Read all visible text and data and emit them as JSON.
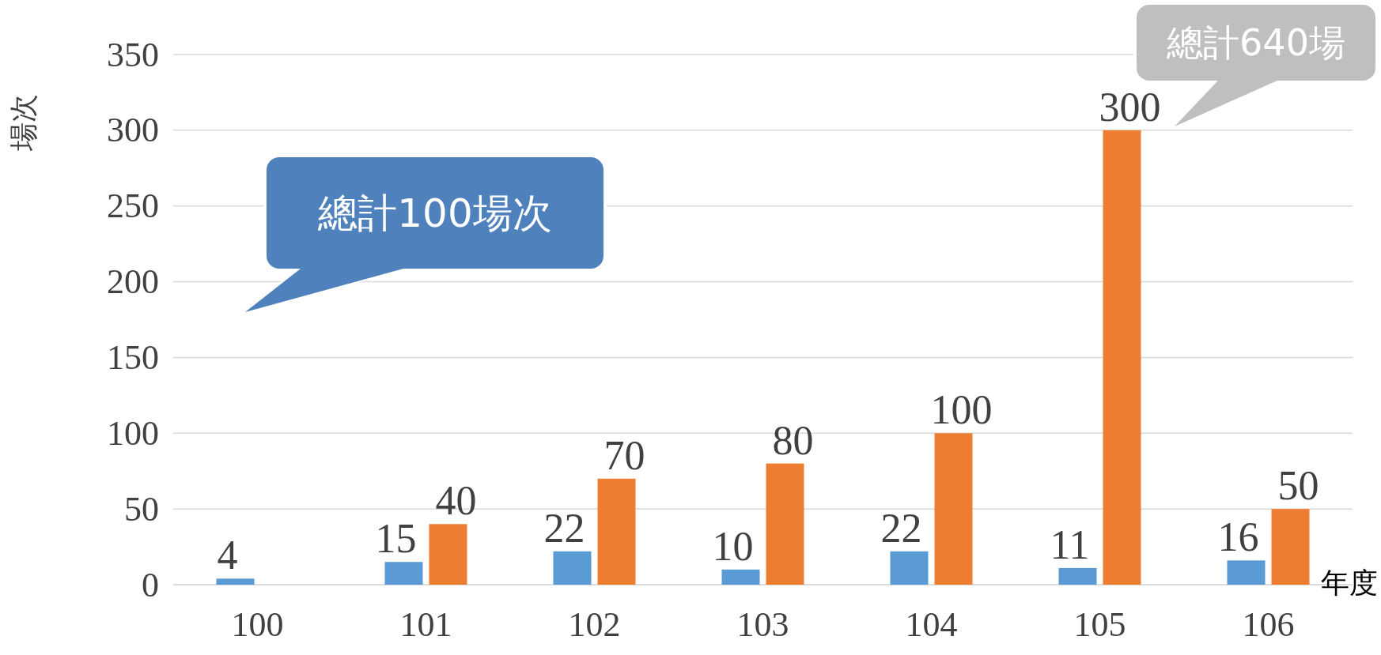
{
  "chart_data": {
    "type": "bar",
    "xlabel": "年度",
    "ylabel": "場次",
    "categories": [
      "100",
      "101",
      "102",
      "103",
      "104",
      "105",
      "106"
    ],
    "series": [
      {
        "color": "#5b9bd5",
        "values": [
          4,
          15,
          22,
          10,
          22,
          11,
          16
        ]
      },
      {
        "color": "#ed7d31",
        "values": [
          null,
          40,
          70,
          80,
          100,
          300,
          50
        ]
      }
    ],
    "ylim": [
      0,
      350
    ],
    "yticks": [
      0,
      50,
      100,
      150,
      200,
      250,
      300,
      350
    ],
    "grid": "y",
    "data_labels": true,
    "annotations": [
      "總計100場次",
      "總計640場"
    ]
  }
}
